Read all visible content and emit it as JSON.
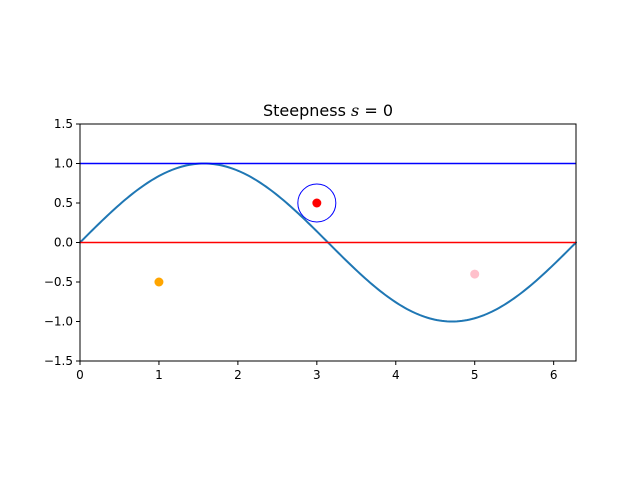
{
  "chart_data": {
    "type": "line",
    "title": "Steepness",
    "title_variable": "s",
    "title_equals": " = ",
    "title_value": "0",
    "xlabel": "",
    "ylabel": "",
    "xlim": [
      0,
      6.283
    ],
    "ylim": [
      -1.5,
      1.5
    ],
    "grid": false,
    "x_ticks": [
      0,
      1,
      2,
      3,
      4,
      5,
      6
    ],
    "x_tick_labels": [
      "0",
      "1",
      "2",
      "3",
      "4",
      "5",
      "6"
    ],
    "y_ticks": [
      -1.5,
      -1.0,
      -0.5,
      0.0,
      0.5,
      1.0,
      1.5
    ],
    "y_tick_labels": [
      "−1.5",
      "−1.0",
      "−0.5",
      "0.0",
      "0.5",
      "1.0",
      "1.5"
    ],
    "series": [
      {
        "kind": "line",
        "color": "#1f77b4",
        "x": [
          0,
          0.314,
          0.628,
          0.942,
          1.257,
          1.571,
          1.885,
          2.199,
          2.513,
          2.827,
          3.142,
          3.456,
          3.77,
          4.084,
          4.398,
          4.712,
          5.027,
          5.341,
          5.655,
          5.969,
          6.283
        ],
        "y": [
          0,
          0.309,
          0.588,
          0.809,
          0.951,
          1.0,
          0.951,
          0.809,
          0.588,
          0.309,
          0,
          -0.309,
          -0.588,
          -0.809,
          -0.951,
          -1.0,
          -0.951,
          -0.809,
          -0.588,
          -0.309,
          0
        ]
      },
      {
        "kind": "hline",
        "color": "#0000ff",
        "y": 1.0
      },
      {
        "kind": "hline",
        "color": "#ff0000",
        "y": 0.0
      }
    ],
    "points": [
      {
        "x": 1,
        "y": -0.5,
        "color": "#ffa500"
      },
      {
        "x": 3,
        "y": 0.5,
        "color": "#ff0000"
      },
      {
        "x": 5,
        "y": -0.4,
        "color": "#ffc0cb"
      }
    ],
    "circles": [
      {
        "x": 3,
        "y": 0.5,
        "color": "#0000ff"
      }
    ]
  }
}
